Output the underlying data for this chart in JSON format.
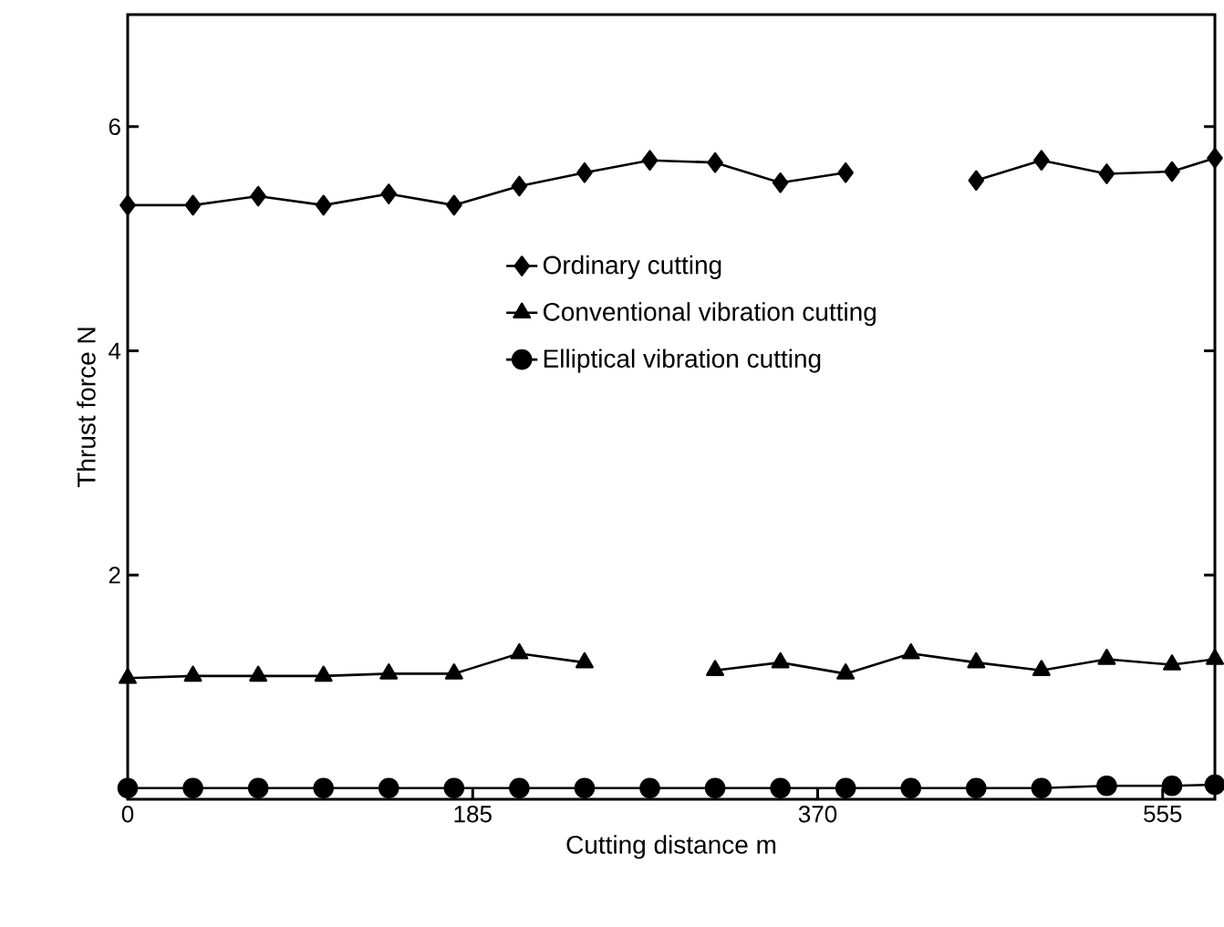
{
  "chart_data": {
    "type": "line",
    "xlabel": "Cutting distance m",
    "ylabel": "Thrust force N",
    "x": [
      0,
      35,
      70,
      105,
      140,
      175,
      210,
      245,
      280,
      315,
      350,
      385,
      420,
      455,
      490,
      525,
      560,
      583
    ],
    "xlim": [
      0,
      583
    ],
    "ylim": [
      0,
      7
    ],
    "xticks": [
      0,
      185,
      370,
      555
    ],
    "yticks": [
      2,
      4,
      6
    ],
    "legend": "center",
    "grid": false,
    "series": [
      {
        "name": "Ordinary cutting",
        "color": "#000000",
        "marker": "diamond",
        "values": [
          5.3,
          5.3,
          5.38,
          5.3,
          5.4,
          5.3,
          5.47,
          5.59,
          5.7,
          5.68,
          5.5,
          5.59,
          null,
          5.52,
          5.7,
          5.58,
          5.6,
          5.72
        ]
      },
      {
        "name": "Conventional vibration cutting",
        "color": "#000000",
        "marker": "triangle",
        "values": [
          1.08,
          1.1,
          1.1,
          1.1,
          1.12,
          1.12,
          1.3,
          1.22,
          null,
          1.15,
          1.22,
          1.12,
          1.3,
          1.22,
          1.15,
          1.25,
          1.2,
          1.25
        ]
      },
      {
        "name": "Elliptical vibration cutting",
        "color": "#000000",
        "marker": "circle",
        "values": [
          0.1,
          0.1,
          0.1,
          0.1,
          0.1,
          0.1,
          0.1,
          0.1,
          0.1,
          0.1,
          0.1,
          0.1,
          0.1,
          0.1,
          0.1,
          0.12,
          0.12,
          0.13
        ]
      }
    ]
  }
}
